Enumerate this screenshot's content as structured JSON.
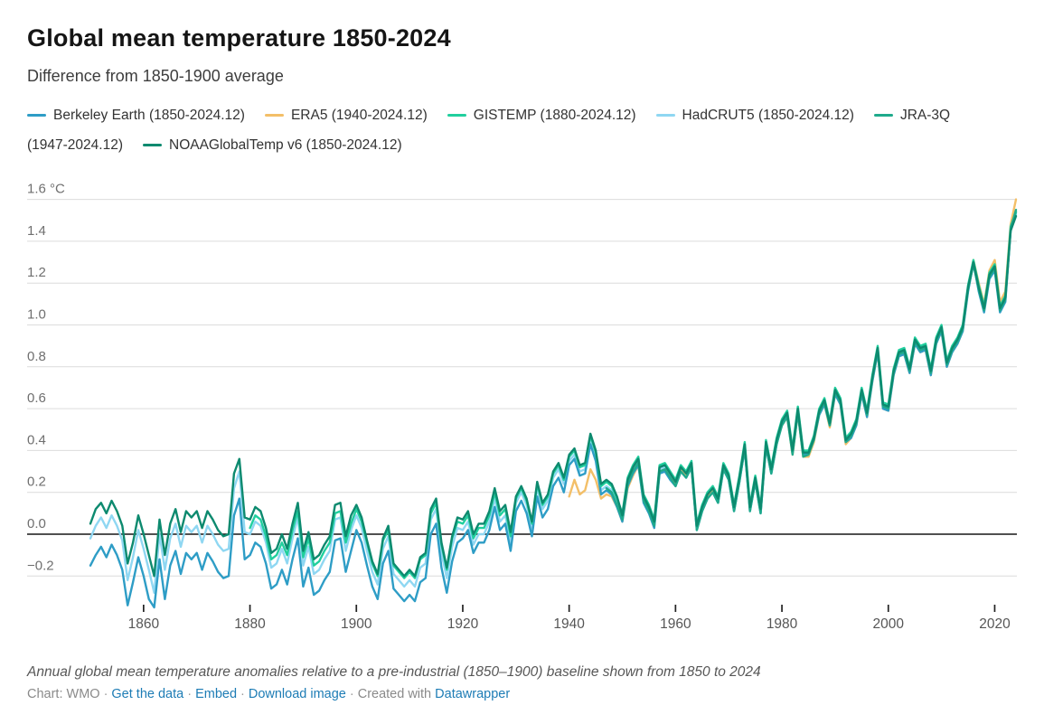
{
  "header": {
    "title": "Global mean temperature 1850-2024",
    "subtitle": "Difference from 1850-1900 average"
  },
  "chart_data": {
    "type": "line",
    "title": "Global mean temperature 1850-2024",
    "subtitle": "Difference from 1850-1900 average",
    "x_min": 1850,
    "x_max": 2024,
    "ylim": [
      -0.4,
      1.65
    ],
    "unit": "°C",
    "grid": "horizontal",
    "legend_position": "top",
    "y_ticks": [
      {
        "label": "1.6 °C",
        "value": 1.6
      },
      {
        "label": "1.4",
        "value": 1.4
      },
      {
        "label": "1.2",
        "value": 1.2
      },
      {
        "label": "1.0",
        "value": 1.0
      },
      {
        "label": "0.8",
        "value": 0.8
      },
      {
        "label": "0.6",
        "value": 0.6
      },
      {
        "label": "0.4",
        "value": 0.4
      },
      {
        "label": "0.2",
        "value": 0.2
      },
      {
        "label": "0.0",
        "value": 0.0
      },
      {
        "label": "−0.2",
        "value": -0.2
      }
    ],
    "x_ticks": [
      1860,
      1880,
      1900,
      1920,
      1940,
      1960,
      1980,
      2000,
      2020
    ],
    "series": [
      {
        "name": "Berkeley Earth (1850-2024.12)",
        "color": "#2e9dc6",
        "start_year": 1850,
        "values": [
          -0.15,
          -0.1,
          -0.06,
          -0.11,
          -0.05,
          -0.1,
          -0.17,
          -0.34,
          -0.23,
          -0.11,
          -0.2,
          -0.31,
          -0.35,
          -0.12,
          -0.31,
          -0.15,
          -0.08,
          -0.19,
          -0.09,
          -0.12,
          -0.09,
          -0.17,
          -0.09,
          -0.13,
          -0.18,
          -0.21,
          -0.2,
          0.09,
          0.17,
          -0.12,
          -0.1,
          -0.04,
          -0.06,
          -0.14,
          -0.26,
          -0.24,
          -0.17,
          -0.24,
          -0.12,
          -0.02,
          -0.25,
          -0.16,
          -0.29,
          -0.27,
          -0.22,
          -0.18,
          -0.03,
          -0.02,
          -0.18,
          -0.08,
          0.02,
          -0.04,
          -0.15,
          -0.25,
          -0.31,
          -0.14,
          -0.08,
          -0.26,
          -0.29,
          -0.32,
          -0.29,
          -0.32,
          -0.23,
          -0.21,
          0.0,
          0.05,
          -0.16,
          -0.28,
          -0.13,
          -0.04,
          -0.02,
          0.02,
          -0.09,
          -0.04,
          -0.04,
          0.02,
          0.13,
          0.02,
          0.05,
          -0.08,
          0.11,
          0.16,
          0.1,
          -0.01,
          0.18,
          0.08,
          0.12,
          0.23,
          0.27,
          0.2,
          0.33,
          0.36,
          0.28,
          0.29,
          0.43,
          0.35,
          0.19,
          0.21,
          0.19,
          0.13,
          0.06,
          0.23,
          0.29,
          0.33,
          0.15,
          0.1,
          0.03,
          0.29,
          0.3,
          0.26,
          0.23,
          0.3,
          0.27,
          0.32,
          0.02,
          0.11,
          0.17,
          0.2,
          0.15,
          0.31,
          0.26,
          0.11,
          0.25,
          0.41,
          0.11,
          0.25,
          0.1,
          0.42,
          0.29,
          0.43,
          0.53,
          0.57,
          0.39,
          0.58,
          0.38,
          0.39,
          0.45,
          0.57,
          0.62,
          0.52,
          0.67,
          0.62,
          0.44,
          0.46,
          0.52,
          0.67,
          0.56,
          0.73,
          0.87,
          0.6,
          0.59,
          0.76,
          0.85,
          0.86,
          0.77,
          0.91,
          0.87,
          0.88,
          0.76,
          0.91,
          0.97,
          0.8,
          0.87,
          0.91,
          0.97,
          1.16,
          1.3,
          1.16,
          1.06,
          1.22,
          1.26,
          1.06,
          1.11,
          1.45,
          1.54
        ]
      },
      {
        "name": "ERA5 (1940-2024.12)",
        "color": "#f3bf68",
        "start_year": 1940,
        "values": [
          0.18,
          0.26,
          0.19,
          0.21,
          0.31,
          0.26,
          0.17,
          0.19,
          0.18,
          0.13,
          0.06,
          0.22,
          0.28,
          0.33,
          0.16,
          0.11,
          0.04,
          0.3,
          0.31,
          0.27,
          0.24,
          0.31,
          0.28,
          0.33,
          0.03,
          0.12,
          0.18,
          0.21,
          0.16,
          0.32,
          0.27,
          0.12,
          0.26,
          0.42,
          0.12,
          0.26,
          0.11,
          0.43,
          0.3,
          0.44,
          0.52,
          0.56,
          0.38,
          0.58,
          0.37,
          0.37,
          0.44,
          0.57,
          0.62,
          0.51,
          0.67,
          0.62,
          0.43,
          0.46,
          0.52,
          0.67,
          0.56,
          0.73,
          0.87,
          0.6,
          0.59,
          0.76,
          0.85,
          0.86,
          0.77,
          0.91,
          0.87,
          0.88,
          0.76,
          0.91,
          0.97,
          0.8,
          0.87,
          0.91,
          0.97,
          1.17,
          1.31,
          1.2,
          1.1,
          1.26,
          1.31,
          1.11,
          1.16,
          1.48,
          1.6
        ]
      },
      {
        "name": "GISTEMP (1880-2024.12)",
        "color": "#21cf9e",
        "start_year": 1880,
        "values": [
          0.03,
          0.09,
          0.07,
          -0.01,
          -0.12,
          -0.1,
          -0.04,
          -0.1,
          0.02,
          0.11,
          -0.11,
          -0.02,
          -0.15,
          -0.13,
          -0.08,
          -0.04,
          0.1,
          0.11,
          -0.04,
          0.05,
          0.12,
          0.06,
          -0.04,
          -0.14,
          -0.2,
          -0.03,
          0.02,
          -0.15,
          -0.18,
          -0.21,
          -0.18,
          -0.21,
          -0.12,
          -0.1,
          0.1,
          0.15,
          -0.05,
          -0.17,
          -0.02,
          0.06,
          0.05,
          0.09,
          -0.02,
          0.03,
          0.03,
          0.09,
          0.2,
          0.09,
          0.12,
          -0.01,
          0.17,
          0.22,
          0.16,
          0.05,
          0.24,
          0.14,
          0.18,
          0.29,
          0.33,
          0.26,
          0.37,
          0.4,
          0.32,
          0.33,
          0.47,
          0.39,
          0.23,
          0.25,
          0.23,
          0.17,
          0.1,
          0.27,
          0.33,
          0.37,
          0.19,
          0.14,
          0.07,
          0.33,
          0.34,
          0.3,
          0.26,
          0.33,
          0.3,
          0.35,
          0.05,
          0.14,
          0.2,
          0.23,
          0.18,
          0.34,
          0.29,
          0.14,
          0.28,
          0.44,
          0.14,
          0.28,
          0.13,
          0.45,
          0.32,
          0.46,
          0.55,
          0.59,
          0.41,
          0.61,
          0.4,
          0.4,
          0.47,
          0.6,
          0.65,
          0.54,
          0.7,
          0.65,
          0.46,
          0.49,
          0.55,
          0.7,
          0.59,
          0.76,
          0.9,
          0.63,
          0.62,
          0.79,
          0.88,
          0.89,
          0.8,
          0.94,
          0.9,
          0.91,
          0.79,
          0.94,
          1.0,
          0.83,
          0.9,
          0.94,
          1.0,
          1.19,
          1.31,
          1.19,
          1.09,
          1.25,
          1.29,
          1.09,
          1.14,
          1.47,
          1.54
        ]
      },
      {
        "name": "HadCRUT5 (1850-2024.12)",
        "color": "#8fd7f2",
        "start_year": 1850,
        "values": [
          -0.02,
          0.04,
          0.08,
          0.03,
          0.09,
          0.04,
          -0.03,
          -0.22,
          -0.11,
          0.02,
          -0.07,
          -0.17,
          -0.28,
          0.0,
          -0.17,
          -0.02,
          0.05,
          -0.06,
          0.04,
          0.01,
          0.04,
          -0.04,
          0.04,
          0.0,
          -0.05,
          -0.08,
          -0.07,
          0.22,
          0.3,
          0.01,
          0.0,
          0.06,
          0.04,
          -0.04,
          -0.16,
          -0.14,
          -0.07,
          -0.14,
          -0.02,
          0.08,
          -0.15,
          -0.06,
          -0.19,
          -0.17,
          -0.12,
          -0.08,
          0.07,
          0.08,
          -0.08,
          0.02,
          0.09,
          0.03,
          -0.08,
          -0.18,
          -0.24,
          -0.07,
          -0.01,
          -0.19,
          -0.22,
          -0.25,
          -0.22,
          -0.25,
          -0.16,
          -0.14,
          0.07,
          0.12,
          -0.09,
          -0.21,
          -0.06,
          0.03,
          0.02,
          0.06,
          -0.05,
          0.0,
          0.0,
          0.06,
          0.17,
          0.06,
          0.09,
          -0.04,
          0.15,
          0.2,
          0.14,
          0.03,
          0.22,
          0.12,
          0.16,
          0.27,
          0.31,
          0.24,
          0.35,
          0.38,
          0.3,
          0.31,
          0.45,
          0.37,
          0.21,
          0.23,
          0.21,
          0.15,
          0.08,
          0.25,
          0.31,
          0.35,
          0.17,
          0.12,
          0.05,
          0.31,
          0.32,
          0.28,
          0.24,
          0.31,
          0.28,
          0.33,
          0.03,
          0.12,
          0.18,
          0.21,
          0.16,
          0.32,
          0.27,
          0.12,
          0.26,
          0.42,
          0.12,
          0.26,
          0.11,
          0.43,
          0.3,
          0.44,
          0.53,
          0.57,
          0.39,
          0.59,
          0.38,
          0.38,
          0.45,
          0.58,
          0.63,
          0.52,
          0.68,
          0.63,
          0.44,
          0.47,
          0.53,
          0.68,
          0.57,
          0.74,
          0.88,
          0.61,
          0.6,
          0.77,
          0.86,
          0.87,
          0.78,
          0.92,
          0.88,
          0.89,
          0.77,
          0.92,
          0.98,
          0.81,
          0.88,
          0.92,
          0.98,
          1.17,
          1.29,
          1.17,
          1.07,
          1.23,
          1.27,
          1.07,
          1.12,
          1.46,
          1.53
        ]
      },
      {
        "name": "JRA-3Q (1947-2024.12)",
        "color": "#1faa8c",
        "start_year": 1947,
        "values": [
          0.22,
          0.2,
          0.14,
          0.07,
          0.24,
          0.3,
          0.34,
          0.16,
          0.11,
          0.04,
          0.3,
          0.31,
          0.27,
          0.23,
          0.3,
          0.27,
          0.32,
          0.02,
          0.11,
          0.17,
          0.2,
          0.15,
          0.31,
          0.26,
          0.11,
          0.25,
          0.41,
          0.11,
          0.25,
          0.1,
          0.42,
          0.29,
          0.43,
          0.52,
          0.56,
          0.38,
          0.58,
          0.37,
          0.38,
          0.45,
          0.58,
          0.63,
          0.52,
          0.68,
          0.63,
          0.44,
          0.47,
          0.53,
          0.68,
          0.57,
          0.74,
          0.88,
          0.61,
          0.6,
          0.77,
          0.86,
          0.87,
          0.78,
          0.92,
          0.88,
          0.89,
          0.77,
          0.92,
          0.98,
          0.81,
          0.88,
          0.92,
          0.98,
          1.17,
          1.29,
          1.17,
          1.07,
          1.23,
          1.27,
          1.07,
          1.12,
          1.46,
          1.55
        ]
      },
      {
        "name": "NOAAGlobalTemp v6 (1850-2024.12)",
        "color": "#0d8a6f",
        "start_year": 1850,
        "values": [
          0.05,
          0.12,
          0.15,
          0.1,
          0.16,
          0.11,
          0.04,
          -0.14,
          -0.04,
          0.09,
          0.0,
          -0.1,
          -0.2,
          0.07,
          -0.1,
          0.05,
          0.12,
          0.01,
          0.11,
          0.08,
          0.11,
          0.03,
          0.11,
          0.07,
          0.02,
          -0.01,
          0.0,
          0.29,
          0.36,
          0.08,
          0.07,
          0.13,
          0.11,
          0.03,
          -0.09,
          -0.07,
          0.0,
          -0.07,
          0.05,
          0.15,
          -0.08,
          0.01,
          -0.12,
          -0.1,
          -0.05,
          -0.01,
          0.14,
          0.15,
          -0.01,
          0.09,
          0.14,
          0.08,
          -0.03,
          -0.13,
          -0.19,
          -0.02,
          0.04,
          -0.14,
          -0.17,
          -0.2,
          -0.17,
          -0.2,
          -0.11,
          -0.09,
          0.12,
          0.17,
          -0.04,
          -0.16,
          -0.01,
          0.08,
          0.07,
          0.11,
          0.0,
          0.05,
          0.05,
          0.11,
          0.22,
          0.11,
          0.14,
          0.01,
          0.18,
          0.23,
          0.17,
          0.06,
          0.25,
          0.15,
          0.19,
          0.3,
          0.34,
          0.27,
          0.38,
          0.41,
          0.33,
          0.34,
          0.48,
          0.4,
          0.24,
          0.26,
          0.24,
          0.18,
          0.09,
          0.26,
          0.32,
          0.36,
          0.18,
          0.13,
          0.06,
          0.32,
          0.33,
          0.29,
          0.25,
          0.32,
          0.29,
          0.34,
          0.04,
          0.13,
          0.19,
          0.22,
          0.17,
          0.33,
          0.28,
          0.13,
          0.27,
          0.43,
          0.13,
          0.27,
          0.12,
          0.44,
          0.31,
          0.45,
          0.54,
          0.58,
          0.4,
          0.6,
          0.39,
          0.39,
          0.46,
          0.59,
          0.64,
          0.53,
          0.69,
          0.64,
          0.45,
          0.48,
          0.54,
          0.69,
          0.58,
          0.75,
          0.89,
          0.62,
          0.61,
          0.78,
          0.87,
          0.88,
          0.79,
          0.93,
          0.89,
          0.9,
          0.78,
          0.93,
          0.99,
          0.82,
          0.89,
          0.93,
          0.99,
          1.18,
          1.3,
          1.18,
          1.08,
          1.24,
          1.28,
          1.08,
          1.13,
          1.45,
          1.52
        ]
      }
    ]
  },
  "footer": {
    "note": "Annual global mean temperature anomalies relative to a pre-industrial (1850–1900) baseline shown from 1850 to 2024",
    "credit": {
      "prefix": "Chart: WMO",
      "links": [
        "Get the data",
        "Embed",
        "Download image"
      ],
      "created_with": "Created with",
      "brand": "Datawrapper",
      "separator": "·"
    }
  }
}
